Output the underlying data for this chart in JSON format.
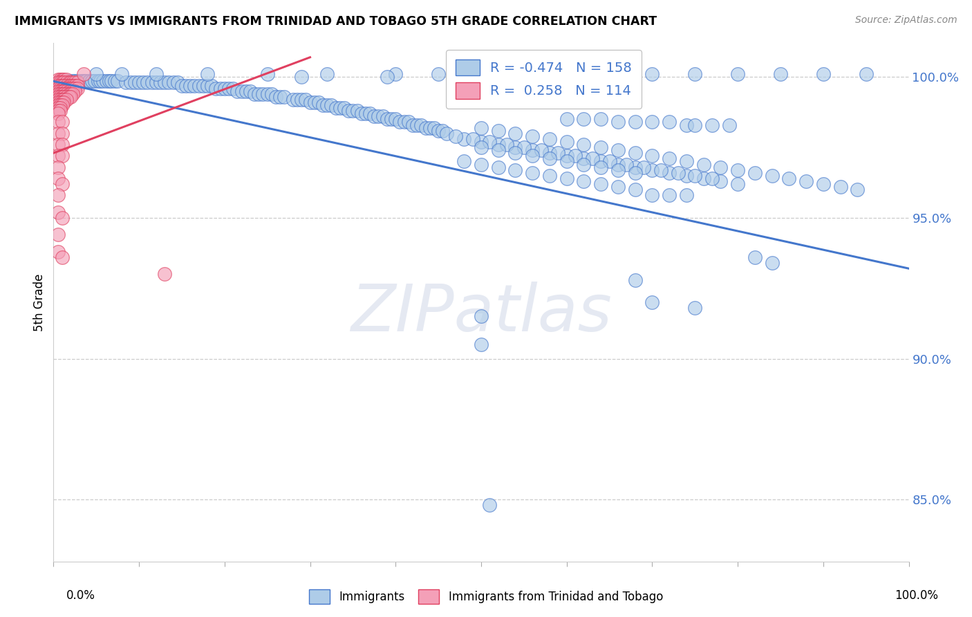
{
  "title": "IMMIGRANTS VS IMMIGRANTS FROM TRINIDAD AND TOBAGO 5TH GRADE CORRELATION CHART",
  "source": "Source: ZipAtlas.com",
  "ylabel": "5th Grade",
  "legend_blue_r": "-0.474",
  "legend_blue_n": "158",
  "legend_pink_r": "0.258",
  "legend_pink_n": "114",
  "legend_blue_label": "Immigrants",
  "legend_pink_label": "Immigrants from Trinidad and Tobago",
  "xmin": 0.0,
  "xmax": 1.0,
  "ymin": 0.828,
  "ymax": 1.012,
  "yticks": [
    0.85,
    0.9,
    0.95,
    1.0
  ],
  "ytick_labels": [
    "85.0%",
    "90.0%",
    "95.0%",
    "100.0%"
  ],
  "blue_color": "#aecce8",
  "pink_color": "#f4a0b8",
  "blue_line_color": "#4477cc",
  "pink_line_color": "#e04060",
  "watermark_text": "ZIPatlas",
  "blue_line_x": [
    0.0,
    1.0
  ],
  "blue_line_y": [
    0.9985,
    0.932
  ],
  "pink_line_x": [
    0.0,
    0.3
  ],
  "pink_line_y": [
    0.973,
    1.007
  ],
  "blue_scatter": [
    [
      0.01,
      0.9985
    ],
    [
      0.015,
      0.9985
    ],
    [
      0.018,
      0.9985
    ],
    [
      0.022,
      0.9985
    ],
    [
      0.025,
      0.9985
    ],
    [
      0.028,
      0.9985
    ],
    [
      0.032,
      0.9985
    ],
    [
      0.035,
      0.9985
    ],
    [
      0.038,
      0.9985
    ],
    [
      0.042,
      0.9985
    ],
    [
      0.045,
      0.9985
    ],
    [
      0.048,
      0.9985
    ],
    [
      0.052,
      0.9985
    ],
    [
      0.055,
      0.9985
    ],
    [
      0.058,
      0.9985
    ],
    [
      0.062,
      0.9985
    ],
    [
      0.065,
      0.9985
    ],
    [
      0.068,
      0.9985
    ],
    [
      0.072,
      0.9985
    ],
    [
      0.075,
      0.9985
    ],
    [
      0.085,
      0.998
    ],
    [
      0.09,
      0.998
    ],
    [
      0.095,
      0.998
    ],
    [
      0.1,
      0.998
    ],
    [
      0.105,
      0.998
    ],
    [
      0.11,
      0.998
    ],
    [
      0.115,
      0.998
    ],
    [
      0.12,
      0.998
    ],
    [
      0.125,
      0.998
    ],
    [
      0.13,
      0.998
    ],
    [
      0.135,
      0.998
    ],
    [
      0.14,
      0.998
    ],
    [
      0.145,
      0.998
    ],
    [
      0.15,
      0.997
    ],
    [
      0.155,
      0.997
    ],
    [
      0.16,
      0.997
    ],
    [
      0.165,
      0.997
    ],
    [
      0.17,
      0.997
    ],
    [
      0.175,
      0.997
    ],
    [
      0.18,
      0.997
    ],
    [
      0.185,
      0.997
    ],
    [
      0.19,
      0.996
    ],
    [
      0.195,
      0.996
    ],
    [
      0.2,
      0.996
    ],
    [
      0.205,
      0.996
    ],
    [
      0.21,
      0.996
    ],
    [
      0.215,
      0.995
    ],
    [
      0.22,
      0.995
    ],
    [
      0.225,
      0.995
    ],
    [
      0.23,
      0.995
    ],
    [
      0.235,
      0.994
    ],
    [
      0.24,
      0.994
    ],
    [
      0.245,
      0.994
    ],
    [
      0.25,
      0.994
    ],
    [
      0.255,
      0.994
    ],
    [
      0.26,
      0.993
    ],
    [
      0.265,
      0.993
    ],
    [
      0.27,
      0.993
    ],
    [
      0.28,
      0.992
    ],
    [
      0.285,
      0.992
    ],
    [
      0.29,
      0.992
    ],
    [
      0.295,
      0.992
    ],
    [
      0.3,
      0.991
    ],
    [
      0.305,
      0.991
    ],
    [
      0.31,
      0.991
    ],
    [
      0.315,
      0.99
    ],
    [
      0.32,
      0.99
    ],
    [
      0.325,
      0.99
    ],
    [
      0.33,
      0.989
    ],
    [
      0.335,
      0.989
    ],
    [
      0.34,
      0.989
    ],
    [
      0.345,
      0.988
    ],
    [
      0.35,
      0.988
    ],
    [
      0.355,
      0.988
    ],
    [
      0.36,
      0.987
    ],
    [
      0.365,
      0.987
    ],
    [
      0.37,
      0.987
    ],
    [
      0.375,
      0.986
    ],
    [
      0.38,
      0.986
    ],
    [
      0.385,
      0.986
    ],
    [
      0.39,
      0.985
    ],
    [
      0.395,
      0.985
    ],
    [
      0.4,
      0.985
    ],
    [
      0.405,
      0.984
    ],
    [
      0.41,
      0.984
    ],
    [
      0.415,
      0.984
    ],
    [
      0.42,
      0.983
    ],
    [
      0.425,
      0.983
    ],
    [
      0.43,
      0.983
    ],
    [
      0.435,
      0.982
    ],
    [
      0.44,
      0.982
    ],
    [
      0.445,
      0.982
    ],
    [
      0.45,
      0.981
    ],
    [
      0.455,
      0.981
    ],
    [
      0.05,
      1.001
    ],
    [
      0.08,
      1.001
    ],
    [
      0.12,
      1.001
    ],
    [
      0.18,
      1.001
    ],
    [
      0.25,
      1.001
    ],
    [
      0.32,
      1.001
    ],
    [
      0.4,
      1.001
    ],
    [
      0.45,
      1.001
    ],
    [
      0.5,
      1.001
    ],
    [
      0.58,
      1.001
    ],
    [
      0.64,
      1.001
    ],
    [
      0.7,
      1.001
    ],
    [
      0.75,
      1.001
    ],
    [
      0.8,
      1.001
    ],
    [
      0.85,
      1.001
    ],
    [
      0.9,
      1.001
    ],
    [
      0.95,
      1.001
    ],
    [
      0.29,
      1.0
    ],
    [
      0.39,
      1.0
    ],
    [
      0.46,
      0.98
    ],
    [
      0.48,
      0.978
    ],
    [
      0.5,
      0.977
    ],
    [
      0.52,
      0.976
    ],
    [
      0.54,
      0.975
    ],
    [
      0.56,
      0.974
    ],
    [
      0.58,
      0.973
    ],
    [
      0.6,
      0.972
    ],
    [
      0.62,
      0.971
    ],
    [
      0.64,
      0.97
    ],
    [
      0.66,
      0.969
    ],
    [
      0.68,
      0.968
    ],
    [
      0.7,
      0.967
    ],
    [
      0.72,
      0.966
    ],
    [
      0.74,
      0.965
    ],
    [
      0.76,
      0.964
    ],
    [
      0.78,
      0.963
    ],
    [
      0.8,
      0.962
    ],
    [
      0.47,
      0.979
    ],
    [
      0.49,
      0.978
    ],
    [
      0.51,
      0.977
    ],
    [
      0.53,
      0.976
    ],
    [
      0.55,
      0.975
    ],
    [
      0.57,
      0.974
    ],
    [
      0.59,
      0.973
    ],
    [
      0.61,
      0.972
    ],
    [
      0.63,
      0.971
    ],
    [
      0.65,
      0.97
    ],
    [
      0.67,
      0.969
    ],
    [
      0.69,
      0.968
    ],
    [
      0.71,
      0.967
    ],
    [
      0.73,
      0.966
    ],
    [
      0.75,
      0.965
    ],
    [
      0.77,
      0.964
    ],
    [
      0.5,
      0.982
    ],
    [
      0.52,
      0.981
    ],
    [
      0.54,
      0.98
    ],
    [
      0.56,
      0.979
    ],
    [
      0.58,
      0.978
    ],
    [
      0.6,
      0.977
    ],
    [
      0.62,
      0.976
    ],
    [
      0.64,
      0.975
    ],
    [
      0.66,
      0.974
    ],
    [
      0.68,
      0.973
    ],
    [
      0.7,
      0.972
    ],
    [
      0.72,
      0.971
    ],
    [
      0.74,
      0.97
    ],
    [
      0.76,
      0.969
    ],
    [
      0.78,
      0.968
    ],
    [
      0.8,
      0.967
    ],
    [
      0.82,
      0.966
    ],
    [
      0.84,
      0.965
    ],
    [
      0.86,
      0.964
    ],
    [
      0.88,
      0.963
    ],
    [
      0.9,
      0.962
    ],
    [
      0.92,
      0.961
    ],
    [
      0.94,
      0.96
    ],
    [
      0.6,
      0.985
    ],
    [
      0.62,
      0.985
    ],
    [
      0.64,
      0.985
    ],
    [
      0.66,
      0.984
    ],
    [
      0.68,
      0.984
    ],
    [
      0.7,
      0.984
    ],
    [
      0.72,
      0.984
    ],
    [
      0.74,
      0.983
    ],
    [
      0.75,
      0.983
    ],
    [
      0.77,
      0.983
    ],
    [
      0.79,
      0.983
    ],
    [
      0.48,
      0.97
    ],
    [
      0.5,
      0.969
    ],
    [
      0.52,
      0.968
    ],
    [
      0.54,
      0.967
    ],
    [
      0.56,
      0.966
    ],
    [
      0.58,
      0.965
    ],
    [
      0.6,
      0.964
    ],
    [
      0.62,
      0.963
    ],
    [
      0.64,
      0.962
    ],
    [
      0.66,
      0.961
    ],
    [
      0.68,
      0.96
    ],
    [
      0.5,
      0.975
    ],
    [
      0.52,
      0.974
    ],
    [
      0.54,
      0.973
    ],
    [
      0.56,
      0.972
    ],
    [
      0.58,
      0.971
    ],
    [
      0.6,
      0.97
    ],
    [
      0.62,
      0.969
    ],
    [
      0.64,
      0.968
    ],
    [
      0.66,
      0.967
    ],
    [
      0.68,
      0.966
    ],
    [
      0.7,
      0.958
    ],
    [
      0.72,
      0.958
    ],
    [
      0.74,
      0.958
    ],
    [
      0.82,
      0.936
    ],
    [
      0.84,
      0.934
    ],
    [
      0.5,
      0.915
    ],
    [
      0.68,
      0.928
    ],
    [
      0.5,
      0.905
    ],
    [
      0.7,
      0.92
    ],
    [
      0.75,
      0.918
    ],
    [
      0.51,
      0.848
    ]
  ],
  "pink_scatter": [
    [
      0.005,
      0.999
    ],
    [
      0.008,
      0.999
    ],
    [
      0.01,
      0.999
    ],
    [
      0.012,
      0.999
    ],
    [
      0.015,
      0.999
    ],
    [
      0.005,
      0.998
    ],
    [
      0.008,
      0.998
    ],
    [
      0.01,
      0.998
    ],
    [
      0.012,
      0.998
    ],
    [
      0.015,
      0.998
    ],
    [
      0.018,
      0.998
    ],
    [
      0.02,
      0.998
    ],
    [
      0.022,
      0.998
    ],
    [
      0.025,
      0.998
    ],
    [
      0.028,
      0.998
    ],
    [
      0.005,
      0.997
    ],
    [
      0.008,
      0.997
    ],
    [
      0.01,
      0.997
    ],
    [
      0.012,
      0.997
    ],
    [
      0.015,
      0.997
    ],
    [
      0.018,
      0.997
    ],
    [
      0.02,
      0.997
    ],
    [
      0.022,
      0.997
    ],
    [
      0.025,
      0.997
    ],
    [
      0.028,
      0.997
    ],
    [
      0.005,
      0.996
    ],
    [
      0.008,
      0.996
    ],
    [
      0.01,
      0.996
    ],
    [
      0.012,
      0.996
    ],
    [
      0.015,
      0.996
    ],
    [
      0.018,
      0.996
    ],
    [
      0.02,
      0.996
    ],
    [
      0.022,
      0.996
    ],
    [
      0.025,
      0.996
    ],
    [
      0.028,
      0.996
    ],
    [
      0.005,
      0.995
    ],
    [
      0.008,
      0.995
    ],
    [
      0.01,
      0.995
    ],
    [
      0.012,
      0.995
    ],
    [
      0.015,
      0.995
    ],
    [
      0.018,
      0.995
    ],
    [
      0.02,
      0.995
    ],
    [
      0.022,
      0.995
    ],
    [
      0.025,
      0.995
    ],
    [
      0.005,
      0.994
    ],
    [
      0.008,
      0.994
    ],
    [
      0.01,
      0.994
    ],
    [
      0.012,
      0.994
    ],
    [
      0.015,
      0.994
    ],
    [
      0.018,
      0.994
    ],
    [
      0.02,
      0.994
    ],
    [
      0.022,
      0.994
    ],
    [
      0.005,
      0.993
    ],
    [
      0.008,
      0.993
    ],
    [
      0.01,
      0.993
    ],
    [
      0.012,
      0.993
    ],
    [
      0.015,
      0.993
    ],
    [
      0.018,
      0.993
    ],
    [
      0.02,
      0.993
    ],
    [
      0.005,
      0.992
    ],
    [
      0.008,
      0.992
    ],
    [
      0.01,
      0.992
    ],
    [
      0.012,
      0.992
    ],
    [
      0.015,
      0.992
    ],
    [
      0.005,
      0.991
    ],
    [
      0.008,
      0.991
    ],
    [
      0.01,
      0.991
    ],
    [
      0.012,
      0.991
    ],
    [
      0.005,
      0.99
    ],
    [
      0.008,
      0.99
    ],
    [
      0.01,
      0.99
    ],
    [
      0.005,
      0.989
    ],
    [
      0.008,
      0.989
    ],
    [
      0.005,
      0.988
    ],
    [
      0.008,
      0.988
    ],
    [
      0.005,
      0.987
    ],
    [
      0.035,
      1.001
    ],
    [
      0.005,
      0.984
    ],
    [
      0.01,
      0.984
    ],
    [
      0.005,
      0.98
    ],
    [
      0.01,
      0.98
    ],
    [
      0.005,
      0.976
    ],
    [
      0.01,
      0.976
    ],
    [
      0.005,
      0.972
    ],
    [
      0.01,
      0.972
    ],
    [
      0.005,
      0.968
    ],
    [
      0.005,
      0.964
    ],
    [
      0.01,
      0.962
    ],
    [
      0.005,
      0.958
    ],
    [
      0.005,
      0.952
    ],
    [
      0.01,
      0.95
    ],
    [
      0.005,
      0.944
    ],
    [
      0.005,
      0.938
    ],
    [
      0.01,
      0.936
    ],
    [
      0.13,
      0.93
    ]
  ]
}
